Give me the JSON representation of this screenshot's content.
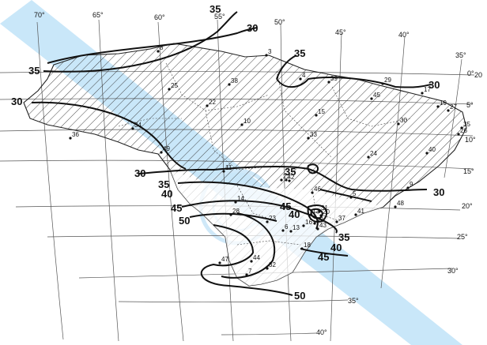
{
  "meridian_labels": [
    "70°",
    "65°",
    "60°",
    "55°",
    "50°",
    "45°",
    "40°",
    "35°"
  ],
  "parallel_labels": [
    "0°",
    "5°",
    "10°",
    "15°",
    "20°",
    "25°",
    "30°",
    "35°",
    "40°"
  ],
  "edge_label": "20",
  "isotach_labels": [
    "35",
    "30",
    "35",
    "30",
    "35",
    "30",
    "30",
    "35",
    "40",
    "45",
    "50",
    "30",
    "35",
    "45",
    "40",
    "40",
    "35",
    "45",
    "50"
  ],
  "station_numbers": [
    "1",
    "2",
    "3",
    "4",
    "5",
    "6",
    "7",
    "8",
    "9",
    "10",
    "11",
    "12",
    "13",
    "14",
    "15",
    "16",
    "17",
    "18",
    "19",
    "20",
    "21",
    "22",
    "23",
    "24",
    "25",
    "26",
    "27",
    "28",
    "29",
    "30",
    "31",
    "32",
    "33",
    "34",
    "35",
    "36",
    "37",
    "38",
    "39",
    "40",
    "41",
    "42",
    "43",
    "44",
    "45",
    "46",
    "47",
    "48",
    "49"
  ],
  "colors": {
    "hatch": "#333333",
    "isoline": "#111111",
    "grid": "#555555",
    "band": "#bfe3f8"
  }
}
